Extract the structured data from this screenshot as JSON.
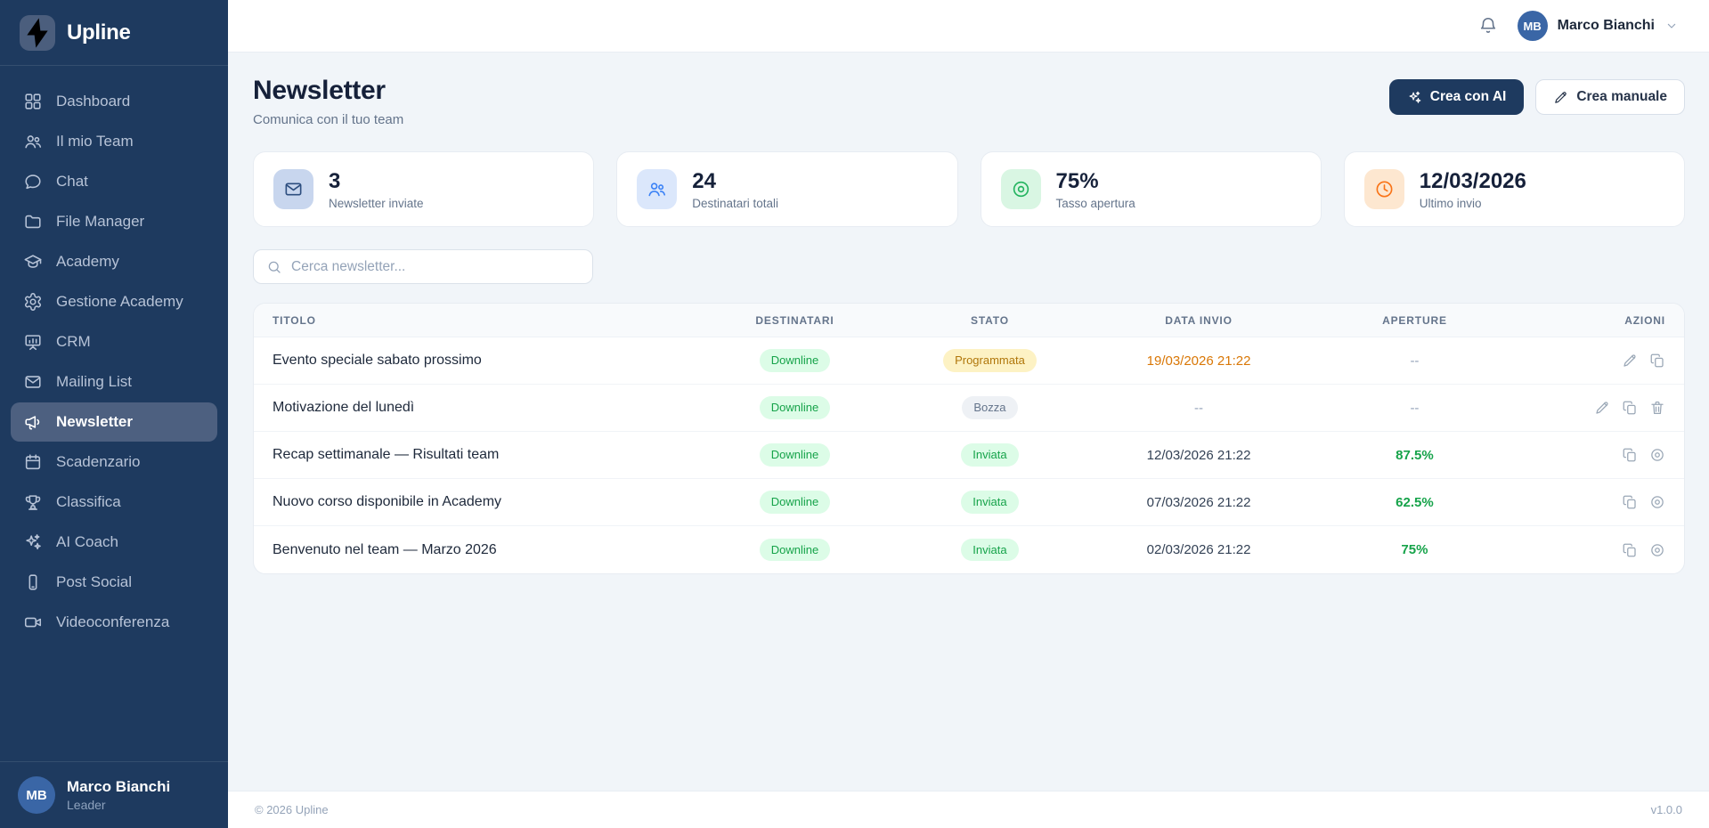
{
  "app": {
    "logo_text": "Upline"
  },
  "sidebar": {
    "items": [
      {
        "label": "Dashboard",
        "icon": "grid-icon",
        "active": false
      },
      {
        "label": "Il mio Team",
        "icon": "users-icon",
        "active": false
      },
      {
        "label": "Chat",
        "icon": "chat-icon",
        "active": false
      },
      {
        "label": "File Manager",
        "icon": "folder-icon",
        "active": false
      },
      {
        "label": "Academy",
        "icon": "graduation-cap-icon",
        "active": false
      },
      {
        "label": "Gestione Academy",
        "icon": "gear-icon",
        "active": false
      },
      {
        "label": "CRM",
        "icon": "presentation-chart-icon",
        "active": false
      },
      {
        "label": "Mailing List",
        "icon": "mail-icon",
        "active": false
      },
      {
        "label": "Newsletter",
        "icon": "megaphone-icon",
        "active": true
      },
      {
        "label": "Scadenzario",
        "icon": "calendar-icon",
        "active": false
      },
      {
        "label": "Classifica",
        "icon": "trophy-icon",
        "active": false
      },
      {
        "label": "AI Coach",
        "icon": "sparkles-icon",
        "active": false
      },
      {
        "label": "Post Social",
        "icon": "smartphone-icon",
        "active": false
      },
      {
        "label": "Videoconferenza",
        "icon": "video-icon",
        "active": false
      }
    ],
    "user": {
      "name": "Marco Bianchi",
      "role": "Leader",
      "initials": "MB"
    }
  },
  "header": {
    "user_name": "Marco Bianchi",
    "user_initials": "MB"
  },
  "page": {
    "title": "Newsletter",
    "subtitle": "Comunica con il tuo team",
    "create_ai_label": "Crea con AI",
    "create_manual_label": "Crea manuale"
  },
  "stats": [
    {
      "value": "3",
      "label": "Newsletter inviate",
      "icon": "mail-icon",
      "icon_bg": "#c8d6ee",
      "icon_color": "#2d4e7f"
    },
    {
      "value": "24",
      "label": "Destinatari totali",
      "icon": "users-icon",
      "icon_bg": "#dbe7fb",
      "icon_color": "#3b82f6"
    },
    {
      "value": "75%",
      "label": "Tasso apertura",
      "icon": "target-icon",
      "icon_bg": "#d9f6e3",
      "icon_color": "#22b35e"
    },
    {
      "value": "12/03/2026",
      "label": "Ultimo invio",
      "icon": "clock-icon",
      "icon_bg": "#fde7d0",
      "icon_color": "#f97316"
    }
  ],
  "search": {
    "placeholder": "Cerca newsletter..."
  },
  "table": {
    "columns": [
      "TITOLO",
      "DESTINATARI",
      "STATO",
      "DATA INVIO",
      "APERTURE",
      "AZIONI"
    ],
    "rows": [
      {
        "titolo": "Evento speciale sabato prossimo",
        "destinatari": "Downline",
        "stato": "Programmata",
        "stato_type": "scheduled",
        "data_invio": "19/03/2026 21:22",
        "data_color": "amber",
        "aperture": "--",
        "actions": [
          "edit",
          "copy"
        ]
      },
      {
        "titolo": "Motivazione del lunedì",
        "destinatari": "Downline",
        "stato": "Bozza",
        "stato_type": "draft",
        "data_invio": "--",
        "data_color": "normal",
        "aperture": "--",
        "actions": [
          "edit",
          "copy",
          "delete"
        ]
      },
      {
        "titolo": "Recap settimanale — Risultati team",
        "destinatari": "Downline",
        "stato": "Inviata",
        "stato_type": "sent",
        "data_invio": "12/03/2026 21:22",
        "data_color": "normal",
        "aperture": "87.5%",
        "actions": [
          "copy",
          "view"
        ]
      },
      {
        "titolo": "Nuovo corso disponibile in Academy",
        "destinatari": "Downline",
        "stato": "Inviata",
        "stato_type": "sent",
        "data_invio": "07/03/2026 21:22",
        "data_color": "normal",
        "aperture": "62.5%",
        "actions": [
          "copy",
          "view"
        ]
      },
      {
        "titolo": "Benvenuto nel team — Marzo 2026",
        "destinatari": "Downline",
        "stato": "Inviata",
        "stato_type": "sent",
        "data_invio": "02/03/2026 21:22",
        "data_color": "normal",
        "aperture": "75%",
        "actions": [
          "copy",
          "view"
        ]
      }
    ]
  },
  "footer": {
    "copyright": "© 2026 Upline",
    "version": "v1.0.0"
  }
}
